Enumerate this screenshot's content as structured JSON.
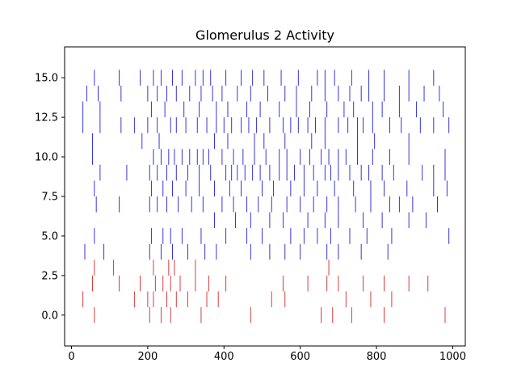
{
  "chart_data": {
    "type": "scatter",
    "marker": "vertical-line",
    "title": "Glomerulus 2 Activity",
    "xlabel": "",
    "ylabel": "",
    "xlim": [
      -18,
      1033
    ],
    "ylim": [
      -1.95,
      16.95
    ],
    "x_ticks": [
      0,
      200,
      400,
      600,
      800,
      1000
    ],
    "x_tick_labels": [
      "0",
      "200",
      "400",
      "600",
      "800",
      "1000"
    ],
    "y_ticks": [
      0.0,
      2.5,
      5.0,
      7.5,
      10.0,
      12.5,
      15.0
    ],
    "y_tick_labels": [
      "0.0",
      "2.5",
      "5.0",
      "7.5",
      "10.0",
      "12.5",
      "15.0"
    ],
    "grid": false,
    "colors": {
      "red_series": "#d62728",
      "blue_series": "#1f1fd6"
    },
    "series": [
      {
        "color": "#d62728",
        "rows": [
          {
            "y": 0,
            "x": [
              60,
              205,
              235,
              260,
              340,
              470,
              655,
              685,
              735,
              820,
              980
            ]
          },
          {
            "y": 1,
            "x": [
              30,
              165,
              200,
              215,
              250,
              275,
              305,
              355,
              385,
              525,
              560,
              720,
              785,
              840
            ]
          },
          {
            "y": 2,
            "x": [
              55,
              125,
              180,
              220,
              240,
              260,
              285,
              325,
              360,
              405,
              555,
              620,
              670,
              700,
              765,
              820,
              885,
              935
            ]
          },
          {
            "y": 3,
            "x": [
              60,
              110,
              215,
              255,
              270,
              325,
              675
            ]
          }
        ]
      },
      {
        "color": "#1f1fd6",
        "rows": [
          {
            "y": 4,
            "x": [
              35,
              85,
              205,
              235,
              265,
              305,
              350,
              380,
              470,
              520,
              560,
              600,
              670,
              700,
              760,
              830
            ]
          },
          {
            "y": 5,
            "x": [
              60,
              210,
              240,
              260,
              290,
              340,
              405,
              460,
              500,
              575,
              610,
              645,
              680,
              730,
              775,
              840,
              990
            ]
          },
          {
            "y": 6,
            "x": [
              375,
              430,
              470,
              520,
              555,
              620,
              665,
              700,
              765,
              815,
              885,
              930
            ]
          },
          {
            "y": 7,
            "x": [
              65,
              125,
              205,
              225,
              250,
              280,
              315,
              345,
              395,
              425,
              460,
              490,
              525,
              565,
              600,
              635,
              670,
              700,
              745,
              785,
              835,
              860,
              895,
              960
            ]
          },
          {
            "y": 8,
            "x": [
              60,
              210,
              240,
              265,
              300,
              335,
              375,
              415,
              445,
              500,
              530,
              575,
              610,
              645,
              690,
              740,
              785,
              820,
              880,
              950,
              985
            ]
          },
          {
            "y": 9,
            "x": [
              75,
              145,
              205,
              225,
              250,
              275,
              305,
              335,
              365,
              405,
              420,
              435,
              455,
              475,
              495,
              520,
              545,
              565,
              585,
              610,
              635,
              665,
              680,
              700,
              730,
              760,
              780,
              815,
              845,
              920,
              950,
              980
            ]
          },
          {
            "y": 10,
            "x": [
              55,
              215,
              235,
              255,
              270,
              290,
              310,
              330,
              345,
              360,
              395,
              425,
              450,
              480,
              510,
              545,
              565,
              600,
              625,
              655,
              675,
              700,
              720,
              750,
              790,
              835,
              885,
              980
            ]
          },
          {
            "y": 11,
            "x": [
              55,
              185,
              230,
              375,
              410,
              480,
              505,
              560,
              630,
              665,
              750,
              795,
              885
            ]
          },
          {
            "y": 12,
            "x": [
              30,
              75,
              130,
              165,
              200,
              225,
              260,
              275,
              300,
              330,
              355,
              380,
              400,
              420,
              445,
              465,
              485,
              520,
              555,
              575,
              595,
              620,
              640,
              665,
              700,
              725,
              750,
              765,
              790,
              835,
              865,
              915,
              950,
              990
            ]
          },
          {
            "y": 13,
            "x": [
              30,
              75,
              210,
              245,
              295,
              335,
              380,
              410,
              460,
              495,
              545,
              590,
              625,
              670,
              715,
              740,
              790,
              815,
              860,
              905,
              975
            ]
          },
          {
            "y": 14,
            "x": [
              40,
              70,
              130,
              200,
              225,
              250,
              275,
              310,
              340,
              370,
              395,
              435,
              470,
              515,
              560,
              590,
              630,
              665,
              700,
              730,
              760,
              780,
              820,
              860,
              885,
              925,
              965
            ]
          },
          {
            "y": 15,
            "x": [
              60,
              125,
              180,
              215,
              235,
              265,
              290,
              325,
              345,
              365,
              405,
              445,
              475,
              505,
              550,
              595,
              645,
              665,
              690,
              735,
              780,
              820,
              885,
              950
            ]
          }
        ]
      }
    ]
  }
}
